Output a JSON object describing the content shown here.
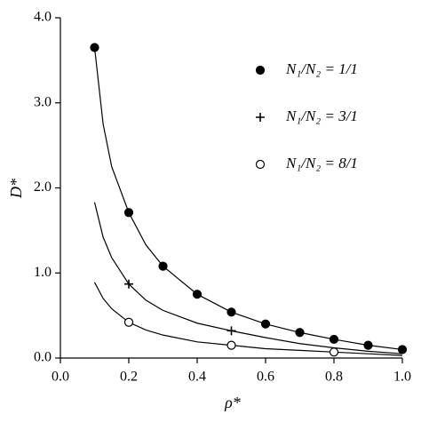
{
  "chart_data": {
    "type": "scatter",
    "x_label": "ρ*",
    "y_label": "D*",
    "xlim": [
      0,
      1
    ],
    "ylim": [
      0,
      4
    ],
    "xticks": [
      {
        "value": 0,
        "label": "0.0"
      },
      {
        "value": 0.2,
        "label": "0.2"
      },
      {
        "value": 0.4,
        "label": "0.4"
      },
      {
        "value": 0.6,
        "label": "0.6"
      },
      {
        "value": 0.8,
        "label": "0.8"
      },
      {
        "value": 1,
        "label": "1.0"
      }
    ],
    "yticks": [
      {
        "value": 0,
        "label": "0.0"
      },
      {
        "value": 1,
        "label": "1.0"
      },
      {
        "value": 2,
        "label": "2.0"
      },
      {
        "value": 3,
        "label": "3.0"
      },
      {
        "value": 4,
        "label": "4.0"
      }
    ],
    "legend": "upper right",
    "series": [
      {
        "name": "N₁/N₂ = 1/1",
        "marker": "filled-circle",
        "color": "#000000",
        "x": [
          0.1,
          0.2,
          0.3,
          0.4,
          0.5,
          0.6,
          0.7,
          0.8,
          0.9,
          1.0
        ],
        "values": [
          3.65,
          1.71,
          1.08,
          0.75,
          0.54,
          0.4,
          0.3,
          0.22,
          0.15,
          0.1
        ]
      },
      {
        "name": "N₁/N₂ = 3/1",
        "marker": "plus",
        "color": "#000000",
        "x": [
          0.2,
          0.5
        ],
        "values": [
          0.87,
          0.32
        ]
      },
      {
        "name": "N₁/N₂ = 8/1",
        "marker": "open-circle",
        "color": "#000000",
        "x": [
          0.2,
          0.5,
          0.8
        ],
        "values": [
          0.42,
          0.15,
          0.07
        ]
      }
    ],
    "curves": [
      {
        "color": "#000000",
        "x": [
          0.1,
          0.125,
          0.15,
          0.2,
          0.25,
          0.3,
          0.4,
          0.5,
          0.6,
          0.7,
          0.8,
          0.9,
          1.0
        ],
        "values": [
          3.65,
          2.75,
          2.25,
          1.71,
          1.33,
          1.08,
          0.75,
          0.54,
          0.4,
          0.3,
          0.22,
          0.15,
          0.1
        ]
      },
      {
        "color": "#000000",
        "x": [
          0.1,
          0.125,
          0.15,
          0.2,
          0.25,
          0.3,
          0.4,
          0.5,
          0.6,
          0.7,
          0.8,
          0.9,
          1.0
        ],
        "values": [
          1.83,
          1.42,
          1.18,
          0.87,
          0.68,
          0.56,
          0.41,
          0.32,
          0.24,
          0.17,
          0.12,
          0.08,
          0.05
        ]
      },
      {
        "color": "#000000",
        "x": [
          0.1,
          0.125,
          0.15,
          0.2,
          0.25,
          0.3,
          0.4,
          0.5,
          0.6,
          0.7,
          0.8,
          0.9,
          1.0
        ],
        "values": [
          0.89,
          0.7,
          0.58,
          0.42,
          0.33,
          0.27,
          0.19,
          0.15,
          0.11,
          0.09,
          0.07,
          0.05,
          0.03
        ]
      }
    ]
  }
}
